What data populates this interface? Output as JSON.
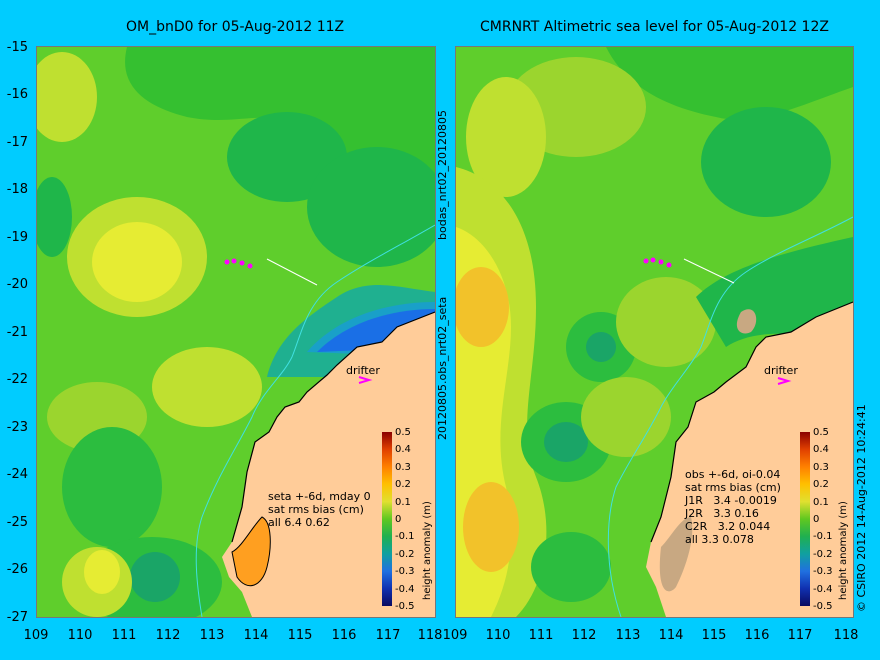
{
  "left_panel": {
    "title": "OM_bnD0 for 05-Aug-2012 11Z",
    "stats_lines": [
      "seta +-6d, mday 0",
      "sat rms bias (cm)",
      "all 6.4 0.62"
    ],
    "drifter_label": "drifter"
  },
  "right_panel": {
    "title": "CMRNRT Altimetric sea level  for 05-Aug-2012 12Z",
    "stats_lines": [
      "obs +-6d, oi-0.04",
      "sat rms bias (cm)",
      "J1R   3.4 -0.0019",
      "J2R   3.3 0.16",
      "C2R   3.2 0.044",
      "all 3.3 0.078"
    ],
    "drifter_label": "drifter"
  },
  "axes": {
    "y_ticks": [
      "-15",
      "-16",
      "-17",
      "-18",
      "-19",
      "-20",
      "-21",
      "-22",
      "-23",
      "-24",
      "-25",
      "-26",
      "-27"
    ],
    "x_ticks_left": [
      "109",
      "110",
      "111",
      "112",
      "113",
      "114",
      "115",
      "116",
      "117",
      "118"
    ],
    "x_ticks_right": [
      "109",
      "110",
      "111",
      "112",
      "113",
      "114",
      "115",
      "116",
      "117",
      "118"
    ],
    "lat_range": [
      -27,
      -15
    ],
    "lon_range": [
      109,
      118
    ]
  },
  "colorbar": {
    "title": "height anomaly (m)",
    "ticks": [
      "0.5",
      "0.4",
      "0.3",
      "0.2",
      "0.1",
      "0",
      "-0.1",
      "-0.2",
      "-0.3",
      "-0.4",
      "-0.5"
    ]
  },
  "side_labels": {
    "middle_top": "bodas_nrt02_20120805",
    "middle_bottom": "20120805.obs_nrt02_seta",
    "right_edge": "© CSIRO 2012  14-Aug-2012 10:24:41"
  },
  "colors": {
    "background": "#00ccff",
    "land": "#ffcc99",
    "drifter_marker": "#ff00ff"
  }
}
